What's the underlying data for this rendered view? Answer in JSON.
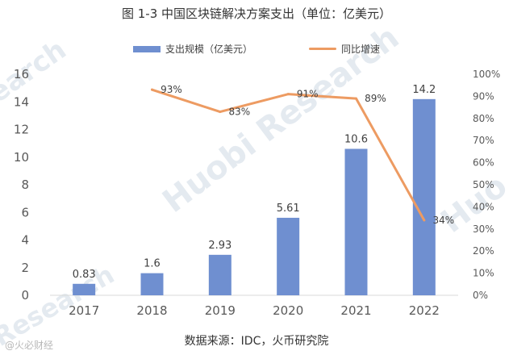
{
  "chart_data": {
    "type": "bar",
    "title": "图 1-3  中国区块链解决方案支出（单位：亿美元）",
    "categories": [
      "2017",
      "2018",
      "2019",
      "2020",
      "2021",
      "2022"
    ],
    "series": [
      {
        "name": "支出规模（亿美元）",
        "type": "bar",
        "axis": "left",
        "color": "#6f8fd0",
        "values": [
          0.83,
          1.6,
          2.93,
          5.61,
          10.6,
          14.2
        ],
        "labels": [
          "0.83",
          "1.6",
          "2.93",
          "5.61",
          "10.6",
          "14.2"
        ]
      },
      {
        "name": "同比增速",
        "type": "line",
        "axis": "right",
        "color": "#ed9b62",
        "values": [
          null,
          93,
          83,
          91,
          89,
          34
        ],
        "labels": [
          null,
          "93%",
          "83%",
          "91%",
          "89%",
          "34%"
        ]
      }
    ],
    "ylim": [
      0,
      16
    ],
    "yticks": [
      "0",
      "2",
      "4",
      "6",
      "8",
      "10",
      "12",
      "14",
      "16"
    ],
    "y2lim": [
      0,
      100
    ],
    "y2ticks": [
      "0%",
      "10%",
      "20%",
      "30%",
      "40%",
      "50%",
      "60%",
      "70%",
      "80%",
      "90%",
      "100%"
    ],
    "legend_position": "top-center",
    "grid": false,
    "source": "数据来源：IDC，火币研究院"
  },
  "watermarks": {
    "brand": "Huobi Research",
    "fragment_left": "search",
    "fragment_right": "Huo",
    "fragment_bottom": "Research",
    "corner_badge": "@火必财经"
  }
}
